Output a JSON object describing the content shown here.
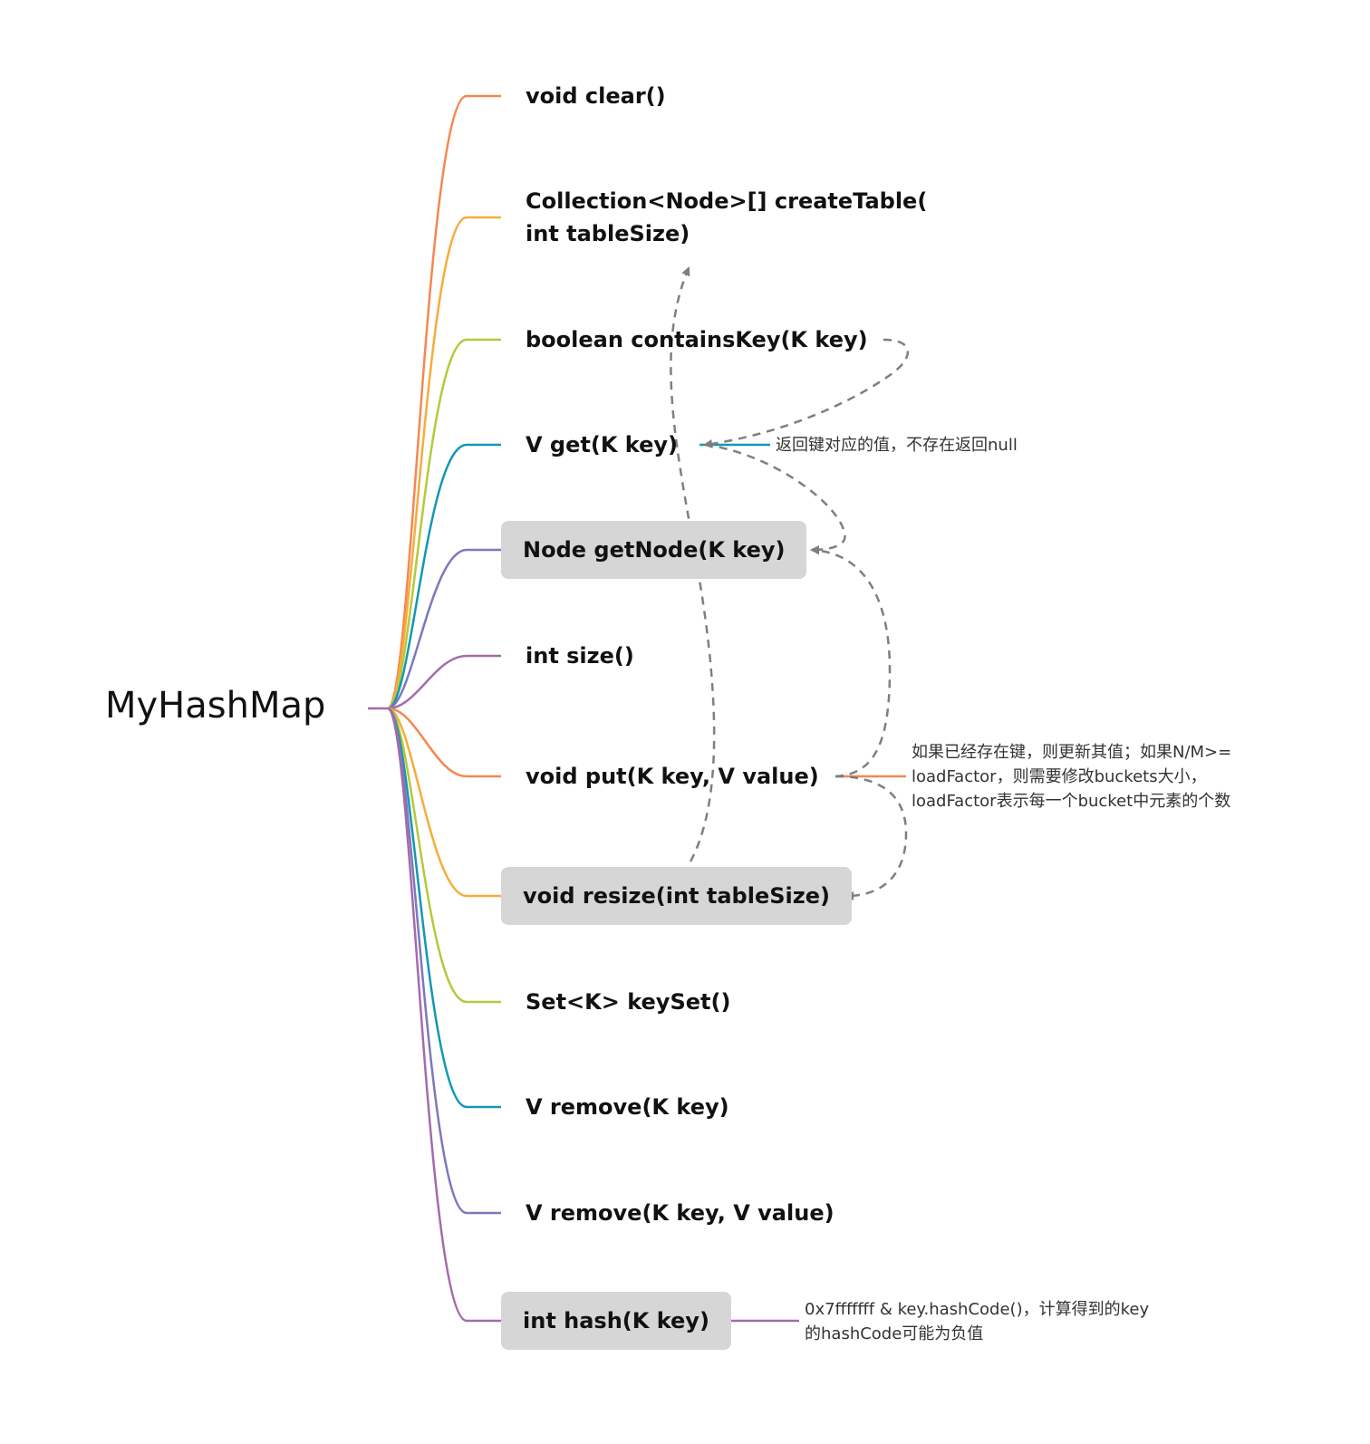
{
  "diagram": {
    "type": "mind-map",
    "root": "MyHashMap",
    "colors": {
      "orange": "#f5874f",
      "amber": "#f5ad3b",
      "lime": "#b5c93a",
      "teal": "#1497b3",
      "indigo": "#7d78bd",
      "purple": "#a46bab",
      "dashed_arrow": "#7f7f7f",
      "box_fill": "#d6d6d6"
    },
    "methods": [
      {
        "label": "void clear()"
      },
      {
        "label_line1": "Collection<Node>[] createTable(",
        "label_line2": "int tableSize)"
      },
      {
        "label": "boolean containsKey(K key)"
      },
      {
        "label": "V get(K key)"
      },
      {
        "label": "Node getNode(K key)"
      },
      {
        "label": "int size()"
      },
      {
        "label": "void put(K key, V value)"
      },
      {
        "label": "void resize(int tableSize)"
      },
      {
        "label": "Set<K> keySet()"
      },
      {
        "label": "V remove(K key)"
      },
      {
        "label": "V remove(K key, V value)"
      },
      {
        "label": "int hash(K key)"
      }
    ],
    "notes": {
      "get": "返回键对应的值，不存在返回null",
      "put_line1": "如果已经存在键，则更新其值；如果N/M>=",
      "put_line2": "loadFactor，则需要修改buckets大小，",
      "put_line3": "loadFactor表示每一个bucket中元素的个数",
      "hash_line1": "0x7fffffff & key.hashCode()，计算得到的key",
      "hash_line2": "的hashCode可能为负值"
    },
    "relations": [
      {
        "from": "boolean containsKey(K key)",
        "to": "V get(K key)"
      },
      {
        "from": "V get(K key)",
        "to": "Node getNode(K key)"
      },
      {
        "from": "void put(K key, V value)",
        "to": "Node getNode(K key)"
      },
      {
        "from": "void put(K key, V value)",
        "to": "void resize(int tableSize)"
      },
      {
        "from": "void resize(int tableSize)",
        "to": "Collection<Node>[] createTable(int tableSize)"
      }
    ]
  }
}
